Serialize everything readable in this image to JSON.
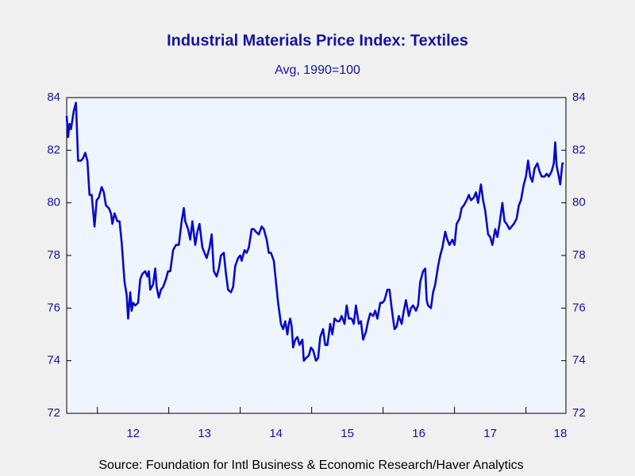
{
  "chart_data": {
    "type": "line",
    "title": "Industrial Materials Price Index: Textiles",
    "subtitle": "Avg, 1990=100",
    "source": "Source:  Foundation for Intl Business & Economic Research/Haver Analytics",
    "xlim": [
      2011.57,
      2018.56
    ],
    "xticks": [
      {
        "value": 2012,
        "label": "12"
      },
      {
        "value": 2013,
        "label": "13"
      },
      {
        "value": 2014,
        "label": "14"
      },
      {
        "value": 2015,
        "label": "15"
      },
      {
        "value": 2016,
        "label": "16"
      },
      {
        "value": 2017,
        "label": "17"
      },
      {
        "value": 2018,
        "label": "18"
      }
    ],
    "ylim": [
      72,
      84
    ],
    "yticks": [
      72,
      74,
      76,
      78,
      80,
      82,
      84
    ],
    "y2lim": [
      72,
      84
    ],
    "y2ticks": [
      72,
      74,
      76,
      78,
      80,
      82,
      84
    ],
    "x": [
      2011.57,
      2011.59,
      2011.61,
      2011.63,
      2011.67,
      2011.7,
      2011.73,
      2011.77,
      2011.8,
      2011.83,
      2011.86,
      2011.89,
      2011.92,
      2011.96,
      2011.99,
      2012.02,
      2012.06,
      2012.09,
      2012.12,
      2012.16,
      2012.19,
      2012.21,
      2012.24,
      2012.28,
      2012.31,
      2012.34,
      2012.38,
      2012.41,
      2012.43,
      2012.46,
      2012.48,
      2012.5,
      2012.53,
      2012.57,
      2012.6,
      2012.63,
      2012.67,
      2012.7,
      2012.72,
      2012.74,
      2012.78,
      2012.81,
      2012.83,
      2012.86,
      2012.89,
      2012.92,
      2012.96,
      2012.99,
      2013.02,
      2013.06,
      2013.1,
      2013.14,
      2013.18,
      2013.21,
      2013.23,
      2013.27,
      2013.3,
      2013.33,
      2013.37,
      2013.4,
      2013.43,
      2013.47,
      2013.5,
      2013.53,
      2013.57,
      2013.6,
      2013.63,
      2013.67,
      2013.7,
      2013.73,
      2013.77,
      2013.8,
      2013.83,
      2013.87,
      2013.9,
      2013.93,
      2013.97,
      2014.0,
      2014.02,
      2014.06,
      2014.09,
      2014.12,
      2014.16,
      2014.19,
      2014.22,
      2014.26,
      2014.3,
      2014.33,
      2014.37,
      2014.4,
      2014.43,
      2014.47,
      2014.5,
      2014.53,
      2014.57,
      2014.6,
      2014.63,
      2014.66,
      2014.68,
      2014.7,
      2014.72,
      2014.74,
      2014.77,
      2014.8,
      2014.83,
      2014.87,
      2014.89,
      2014.92,
      2014.96,
      2014.99,
      2015.02,
      2015.06,
      2015.09,
      2015.12,
      2015.16,
      2015.19,
      2015.22,
      2015.26,
      2015.29,
      2015.32,
      2015.36,
      2015.39,
      2015.42,
      2015.46,
      2015.49,
      2015.52,
      2015.56,
      2015.59,
      2015.62,
      2015.66,
      2015.69,
      2015.72,
      2015.76,
      2015.79,
      2015.82,
      2015.86,
      2015.89,
      2015.92,
      2015.96,
      2015.99,
      2016.02,
      2016.06,
      2016.09,
      2016.12,
      2016.16,
      2016.19,
      2016.22,
      2016.26,
      2016.29,
      2016.32,
      2016.36,
      2016.39,
      2016.42,
      2016.46,
      2016.49,
      2016.52,
      2016.56,
      2016.59,
      2016.61,
      2016.63,
      2016.67,
      2016.7,
      2016.73,
      2016.77,
      2016.8,
      2016.83,
      2016.87,
      2016.9,
      2016.93,
      2016.97,
      2017.0,
      2017.03,
      2017.07,
      2017.1,
      2017.13,
      2017.17,
      2017.2,
      2017.23,
      2017.27,
      2017.3,
      2017.33,
      2017.37,
      2017.4,
      2017.43,
      2017.47,
      2017.5,
      2017.53,
      2017.57,
      2017.6,
      2017.63,
      2017.67,
      2017.7,
      2017.73,
      2017.77,
      2017.8,
      2017.83,
      2017.87,
      2017.9,
      2017.93,
      2017.97,
      2018.0,
      2018.03,
      2018.06,
      2018.09,
      2018.12,
      2018.16,
      2018.19,
      2018.22,
      2018.26,
      2018.29,
      2018.32,
      2018.36,
      2018.39,
      2018.41,
      2018.43,
      2018.46,
      2018.48,
      2018.51,
      2018.53
    ],
    "series": [
      {
        "name": "Textiles",
        "color": "#0a0ac8",
        "values": [
          83.3,
          82.5,
          83.0,
          82.8,
          83.5,
          83.8,
          81.6,
          81.6,
          81.7,
          81.9,
          81.6,
          80.3,
          80.3,
          79.1,
          80.1,
          80.2,
          80.6,
          80.4,
          79.9,
          79.8,
          79.6,
          79.2,
          79.6,
          79.3,
          79.3,
          78.5,
          77.0,
          76.5,
          75.6,
          76.6,
          75.9,
          76.2,
          76.1,
          76.2,
          77.1,
          77.3,
          77.4,
          77.2,
          77.4,
          76.7,
          76.9,
          77.5,
          76.8,
          76.4,
          76.7,
          76.8,
          77.1,
          77.4,
          77.4,
          78.2,
          78.4,
          78.4,
          79.3,
          79.8,
          79.3,
          79.0,
          78.6,
          79.3,
          78.4,
          78.9,
          79.2,
          78.3,
          78.1,
          77.9,
          78.3,
          78.8,
          77.4,
          77.2,
          77.5,
          78.0,
          78.1,
          77.3,
          76.7,
          76.6,
          76.8,
          77.6,
          77.9,
          78.0,
          77.8,
          78.2,
          78.1,
          78.3,
          79.0,
          79.0,
          78.9,
          78.8,
          79.1,
          79.0,
          78.6,
          78.1,
          78.1,
          77.8,
          77.0,
          76.2,
          75.4,
          75.2,
          75.5,
          75.0,
          75.4,
          75.6,
          75.3,
          74.5,
          74.8,
          74.9,
          74.6,
          74.8,
          74.0,
          74.1,
          74.2,
          74.5,
          74.4,
          74.0,
          74.1,
          74.9,
          75.2,
          74.6,
          74.6,
          75.4,
          75.0,
          75.6,
          75.5,
          75.5,
          75.7,
          75.4,
          76.1,
          75.6,
          75.6,
          75.4,
          76.1,
          75.4,
          75.5,
          74.8,
          75.1,
          75.5,
          75.8,
          75.7,
          75.9,
          75.6,
          76.2,
          76.2,
          76.3,
          76.7,
          76.7,
          76.0,
          75.2,
          75.3,
          75.7,
          75.4,
          75.9,
          76.3,
          75.7,
          76.0,
          76.1,
          75.9,
          76.1,
          77.0,
          77.4,
          77.5,
          76.3,
          76.1,
          76.0,
          76.6,
          76.9,
          77.6,
          78.0,
          78.3,
          78.9,
          78.6,
          78.4,
          78.6,
          78.4,
          79.2,
          79.4,
          79.8,
          79.9,
          80.1,
          80.3,
          80.1,
          80.2,
          80.4,
          80.0,
          80.7,
          80.1,
          79.7,
          78.8,
          78.7,
          78.4,
          79.0,
          78.7,
          79.2,
          80.0,
          79.3,
          79.2,
          79.0,
          79.1,
          79.2,
          79.4,
          79.9,
          80.1,
          80.7,
          81.0,
          81.6,
          81.0,
          80.8,
          81.3,
          81.5,
          81.2,
          81.0,
          81.0,
          81.1,
          81.0,
          81.2,
          81.5,
          82.3,
          81.4,
          81.0,
          80.7,
          81.5,
          81.5
        ]
      }
    ]
  }
}
